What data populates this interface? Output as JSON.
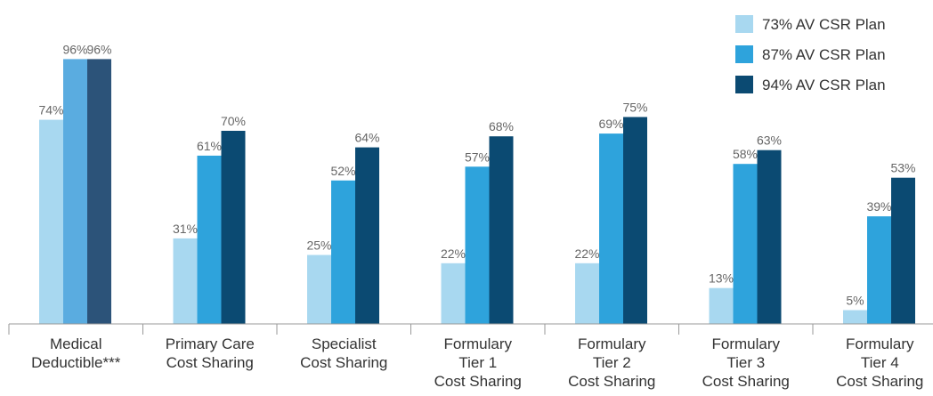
{
  "chart_data": {
    "type": "bar",
    "title": "",
    "xlabel": "",
    "ylabel": "",
    "ylim": [
      0,
      100
    ],
    "grid": false,
    "legend_position": "top-right",
    "categories": [
      [
        "Medical",
        "Deductible***"
      ],
      [
        "Primary Care",
        "Cost Sharing"
      ],
      [
        "Specialist",
        "Cost Sharing"
      ],
      [
        "Formulary",
        "Tier 1",
        "Cost Sharing"
      ],
      [
        "Formulary",
        "Tier 2",
        "Cost Sharing"
      ],
      [
        "Formulary",
        "Tier 3",
        "Cost Sharing"
      ],
      [
        "Formulary",
        "Tier 4",
        "Cost Sharing"
      ]
    ],
    "series": [
      {
        "name": "73% AV CSR Plan",
        "color": "#a8d8f0",
        "values": [
          74,
          31,
          25,
          22,
          22,
          13,
          5
        ]
      },
      {
        "name": "87% AV CSR Plan",
        "color": "#2ea3dc",
        "values": [
          96,
          61,
          52,
          57,
          69,
          58,
          39
        ]
      },
      {
        "name": "94% AV CSR Plan",
        "color": "#0b4a72",
        "values": [
          96,
          70,
          64,
          68,
          75,
          63,
          53
        ]
      }
    ],
    "first_group_colors": [
      "#a8d8f0",
      "#5aace0",
      "#2c5379"
    ],
    "value_suffix": "%"
  }
}
